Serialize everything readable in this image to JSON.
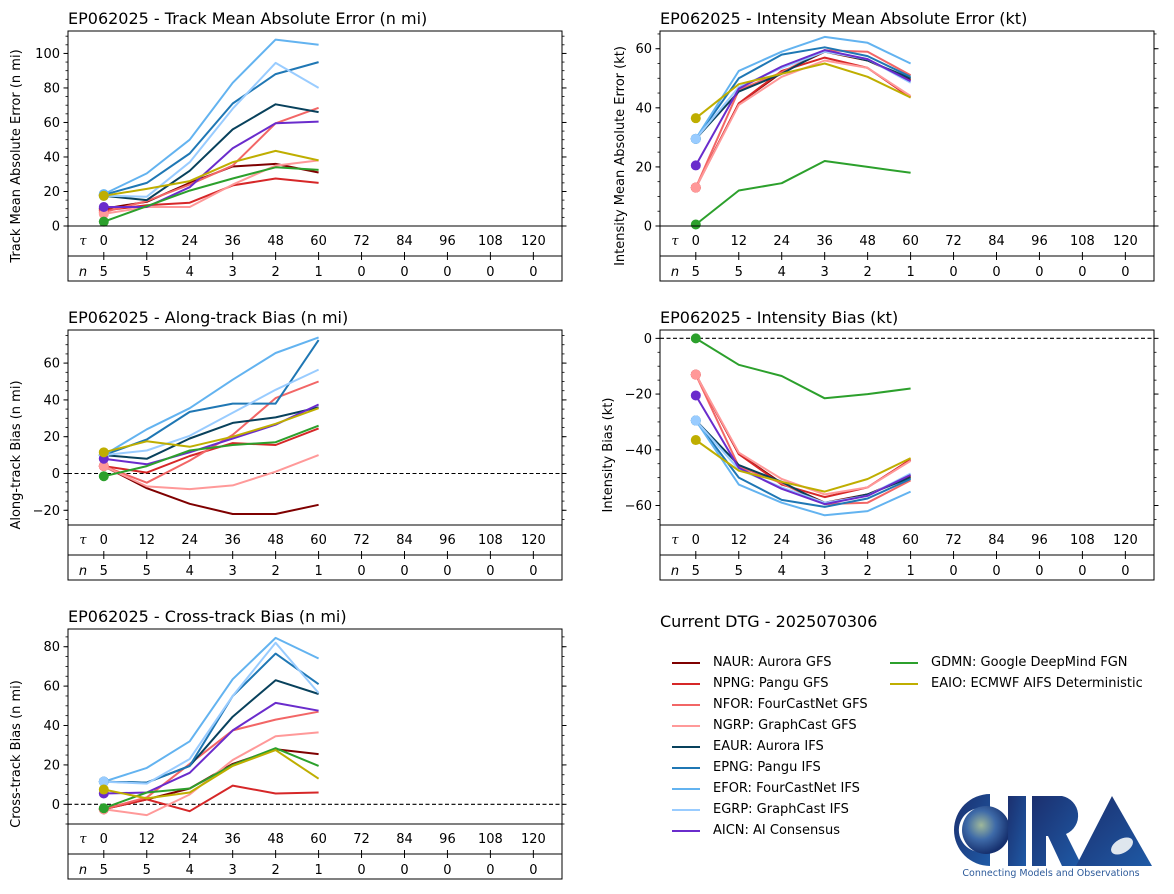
{
  "storm": "EP062025",
  "legend": {
    "title": "Current DTG - 2025070306",
    "columns": [
      [
        "NAUR",
        "NPNG",
        "NFOR",
        "NGRP",
        "EAUR",
        "EPNG",
        "EFOR",
        "EGRP",
        "AICN"
      ],
      [
        "GDMN",
        "EAIO"
      ]
    ]
  },
  "models": {
    "NAUR": {
      "label": "NAUR: Aurora GFS",
      "color": "#7f0000"
    },
    "NPNG": {
      "label": "NPNG: Pangu GFS",
      "color": "#d62728"
    },
    "NFOR": {
      "label": "NFOR: FourCastNet GFS",
      "color": "#f26666"
    },
    "NGRP": {
      "label": "NGRP: GraphCast GFS",
      "color": "#ff9999"
    },
    "EAUR": {
      "label": "EAUR: Aurora IFS",
      "color": "#08415c"
    },
    "EPNG": {
      "label": "EPNG: Pangu IFS",
      "color": "#1f77b4"
    },
    "EFOR": {
      "label": "EFOR: FourCastNet IFS",
      "color": "#63b3f0"
    },
    "EGRP": {
      "label": "EGRP: GraphCast IFS",
      "color": "#99ccff"
    },
    "AICN": {
      "label": "AICN: AI Consensus",
      "color": "#6a2ccc"
    },
    "GDMN": {
      "label": "GDMN: Google DeepMind FGN",
      "color": "#2ca02c"
    },
    "EAIO": {
      "label": "EAIO: ECMWF AIFS Deterministic",
      "color": "#bfae00"
    }
  },
  "logo": {
    "text": "CIRA",
    "tagline": "Connecting Models and Observations"
  },
  "chart_data": [
    {
      "type": "line",
      "id": "track-mae",
      "title": "EP062025 - Track Mean Absolute Error (n mi)",
      "xlabel": "",
      "ylabel": "Track Mean Absolute Error (n mi)",
      "ylim": [
        0,
        113
      ],
      "yticks": [
        0,
        20,
        40,
        60,
        80,
        100
      ],
      "zero_line": false,
      "tau": [
        0,
        12,
        24,
        36,
        48,
        60,
        72,
        84,
        96,
        108,
        120
      ],
      "n": [
        5,
        5,
        4,
        3,
        2,
        1,
        0,
        0,
        0,
        0,
        0
      ],
      "x": [
        0,
        12,
        24,
        36,
        48,
        60
      ],
      "series": [
        {
          "name": "NAUR",
          "values": [
            10,
            14,
            25,
            34.5,
            36,
            31
          ]
        },
        {
          "name": "NPNG",
          "values": [
            9,
            12,
            13.5,
            23.5,
            27.5,
            25
          ]
        },
        {
          "name": "NFOR",
          "values": [
            8,
            14.5,
            24,
            35,
            59.5,
            68.5
          ]
        },
        {
          "name": "NGRP",
          "values": [
            7,
            11,
            11,
            24,
            35,
            38
          ]
        },
        {
          "name": "EAUR",
          "values": [
            17.5,
            15,
            32,
            56,
            70.5,
            66
          ]
        },
        {
          "name": "EPNG",
          "values": [
            18,
            25,
            42,
            71,
            88,
            95
          ]
        },
        {
          "name": "EFOR",
          "values": [
            18.5,
            30.5,
            50,
            83,
            108,
            105
          ]
        },
        {
          "name": "EGRP",
          "values": [
            17.5,
            17,
            37,
            68,
            94.5,
            80
          ]
        },
        {
          "name": "AICN",
          "values": [
            11,
            11,
            22.5,
            45,
            59.5,
            60.5
          ]
        },
        {
          "name": "GDMN",
          "values": [
            2.5,
            11.5,
            20.5,
            27.5,
            34,
            32.5
          ]
        },
        {
          "name": "EAIO",
          "values": [
            17.5,
            21.5,
            26,
            37,
            43.5,
            38
          ]
        }
      ]
    },
    {
      "type": "line",
      "id": "intensity-mae",
      "title": "EP062025 - Intensity Mean Absolute Error (kt)",
      "xlabel": "",
      "ylabel": "Intensity Mean Absolute Error (kt)",
      "ylim": [
        0,
        66
      ],
      "yticks": [
        0,
        20,
        40,
        60
      ],
      "zero_line": false,
      "tau": [
        0,
        12,
        24,
        36,
        48,
        60,
        72,
        84,
        96,
        108,
        120
      ],
      "n": [
        5,
        5,
        4,
        3,
        2,
        1,
        0,
        0,
        0,
        0,
        0
      ],
      "x": [
        0,
        12,
        24,
        36,
        48,
        60
      ],
      "series": [
        {
          "name": "NAUR",
          "values": [
            13,
            41.5,
            52,
            59,
            56,
            49.5
          ]
        },
        {
          "name": "NPNG",
          "values": [
            13,
            41.5,
            52.5,
            57,
            53.5,
            43.5
          ]
        },
        {
          "name": "NFOR",
          "values": [
            13,
            46,
            52,
            59.5,
            59,
            51
          ]
        },
        {
          "name": "NGRP",
          "values": [
            13,
            41,
            50.5,
            56,
            53.5,
            44
          ]
        },
        {
          "name": "EAUR",
          "values": [
            29.5,
            45.5,
            51.5,
            59.5,
            56,
            50
          ]
        },
        {
          "name": "EPNG",
          "values": [
            29.5,
            50,
            58,
            60.5,
            57.5,
            50.5
          ]
        },
        {
          "name": "EFOR",
          "values": [
            29.5,
            52.5,
            59,
            64,
            62,
            55
          ]
        },
        {
          "name": "EGRP",
          "values": [
            29.5,
            47,
            53.5,
            59,
            56.5,
            48.5
          ]
        },
        {
          "name": "AICN",
          "values": [
            20.5,
            46.5,
            54,
            59.5,
            56.5,
            49
          ]
        },
        {
          "name": "GDMN",
          "values": [
            0.5,
            12,
            14.5,
            22,
            20,
            18
          ]
        },
        {
          "name": "EAIO",
          "values": [
            36.5,
            48,
            51.5,
            55,
            50.5,
            43.5
          ]
        }
      ]
    },
    {
      "type": "line",
      "id": "along-track-bias",
      "title": "EP062025 - Along-track Bias (n mi)",
      "xlabel": "",
      "ylabel": "Along-track Bias (n mi)",
      "ylim": [
        -28,
        78
      ],
      "yticks": [
        -20,
        0,
        20,
        40,
        60
      ],
      "zero_line": true,
      "tau": [
        0,
        12,
        24,
        36,
        48,
        60,
        72,
        84,
        96,
        108,
        120
      ],
      "n": [
        5,
        5,
        4,
        3,
        2,
        1,
        0,
        0,
        0,
        0,
        0
      ],
      "x": [
        0,
        12,
        24,
        36,
        48,
        60
      ],
      "series": [
        {
          "name": "NAUR",
          "values": [
            4,
            -8,
            -16.5,
            -22,
            -22,
            -17
          ]
        },
        {
          "name": "NPNG",
          "values": [
            4,
            0.5,
            9.5,
            16.5,
            15.5,
            24.5
          ]
        },
        {
          "name": "NFOR",
          "values": [
            4,
            -5,
            7,
            21,
            41,
            50
          ]
        },
        {
          "name": "NGRP",
          "values": [
            4,
            -7,
            -8.5,
            -6.5,
            1,
            10
          ]
        },
        {
          "name": "EAUR",
          "values": [
            10,
            8,
            19,
            27.5,
            30.5,
            36
          ]
        },
        {
          "name": "EPNG",
          "values": [
            10,
            18.5,
            33.5,
            38,
            38,
            72.5
          ]
        },
        {
          "name": "EFOR",
          "values": [
            10,
            24,
            35.5,
            51,
            65.5,
            74
          ]
        },
        {
          "name": "EGRP",
          "values": [
            10,
            12.5,
            20.5,
            33,
            45.5,
            56.5
          ]
        },
        {
          "name": "AICN",
          "values": [
            8,
            5,
            11.5,
            19,
            26.5,
            37.5
          ]
        },
        {
          "name": "GDMN",
          "values": [
            -1.5,
            4,
            12.5,
            15.5,
            17,
            26
          ]
        },
        {
          "name": "EAIO",
          "values": [
            11.5,
            17.5,
            14.5,
            20,
            27,
            35.5
          ]
        }
      ]
    },
    {
      "type": "line",
      "id": "intensity-bias",
      "title": "EP062025 - Intensity Bias (kt)",
      "xlabel": "",
      "ylabel": "Intensity Bias (kt)",
      "ylim": [
        -67,
        3
      ],
      "yticks": [
        -60,
        -40,
        -20,
        0
      ],
      "zero_line": true,
      "tau": [
        0,
        12,
        24,
        36,
        48,
        60,
        72,
        84,
        96,
        108,
        120
      ],
      "n": [
        5,
        5,
        4,
        3,
        2,
        1,
        0,
        0,
        0,
        0,
        0
      ],
      "x": [
        0,
        12,
        24,
        36,
        48,
        60
      ],
      "series": [
        {
          "name": "NAUR",
          "values": [
            -13,
            -41.5,
            -52,
            -59,
            -56,
            -49.5
          ]
        },
        {
          "name": "NPNG",
          "values": [
            -13,
            -41.5,
            -52.5,
            -57,
            -53.5,
            -43.5
          ]
        },
        {
          "name": "NFOR",
          "values": [
            -13,
            -46,
            -52,
            -59.5,
            -59,
            -51
          ]
        },
        {
          "name": "NGRP",
          "values": [
            -13,
            -41,
            -50.5,
            -56,
            -53.5,
            -44
          ]
        },
        {
          "name": "EAUR",
          "values": [
            -29.5,
            -45.5,
            -51.5,
            -59.5,
            -56,
            -50
          ]
        },
        {
          "name": "EPNG",
          "values": [
            -29.5,
            -50,
            -58,
            -60.5,
            -57.5,
            -50.5
          ]
        },
        {
          "name": "EFOR",
          "values": [
            -29.5,
            -52.5,
            -59,
            -63.5,
            -62,
            -55
          ]
        },
        {
          "name": "EGRP",
          "values": [
            -29.5,
            -47,
            -53.5,
            -59,
            -56.5,
            -48.5
          ]
        },
        {
          "name": "AICN",
          "values": [
            -20.5,
            -46.5,
            -54,
            -59.5,
            -56.5,
            -49
          ]
        },
        {
          "name": "GDMN",
          "values": [
            0,
            -9.5,
            -13.5,
            -21.5,
            -20,
            -18
          ]
        },
        {
          "name": "EAIO",
          "values": [
            -36.5,
            -47.5,
            -51.5,
            -55,
            -50.5,
            -43
          ]
        }
      ]
    },
    {
      "type": "line",
      "id": "cross-track-bias",
      "title": "EP062025 - Cross-track Bias (n mi)",
      "xlabel": "",
      "ylabel": "Cross-track Bias (n mi)",
      "ylim": [
        -10,
        89
      ],
      "yticks": [
        0,
        20,
        40,
        60,
        80
      ],
      "zero_line": true,
      "tau": [
        0,
        12,
        24,
        36,
        48,
        60,
        72,
        84,
        96,
        108,
        120
      ],
      "n": [
        5,
        5,
        4,
        3,
        2,
        1,
        0,
        0,
        0,
        0,
        0
      ],
      "x": [
        0,
        12,
        24,
        36,
        48,
        60
      ],
      "series": [
        {
          "name": "NAUR",
          "values": [
            -2.5,
            2.5,
            8,
            20.5,
            28,
            25.5
          ]
        },
        {
          "name": "NPNG",
          "values": [
            -2.5,
            2.5,
            -3.5,
            9.5,
            5.5,
            6
          ]
        },
        {
          "name": "NFOR",
          "values": [
            -2.5,
            3.5,
            20.5,
            37.5,
            43,
            47
          ]
        },
        {
          "name": "NGRP",
          "values": [
            -2.5,
            -5.5,
            5,
            22.5,
            34.5,
            36.5
          ]
        },
        {
          "name": "EAUR",
          "values": [
            11.5,
            11,
            19.5,
            44.5,
            63,
            56
          ]
        },
        {
          "name": "EPNG",
          "values": [
            11.5,
            11,
            19.5,
            55,
            76.5,
            61
          ]
        },
        {
          "name": "EFOR",
          "values": [
            11.5,
            18.5,
            32,
            63.5,
            84.5,
            74
          ]
        },
        {
          "name": "EGRP",
          "values": [
            11.5,
            10.5,
            23,
            55,
            82,
            56.5
          ]
        },
        {
          "name": "AICN",
          "values": [
            5.5,
            6,
            16,
            37.5,
            51.5,
            47.5
          ]
        },
        {
          "name": "GDMN",
          "values": [
            -2,
            6,
            8,
            20,
            28.5,
            19.5
          ]
        },
        {
          "name": "EAIO",
          "values": [
            7.5,
            3,
            6,
            19.5,
            27.5,
            13
          ]
        }
      ]
    }
  ]
}
